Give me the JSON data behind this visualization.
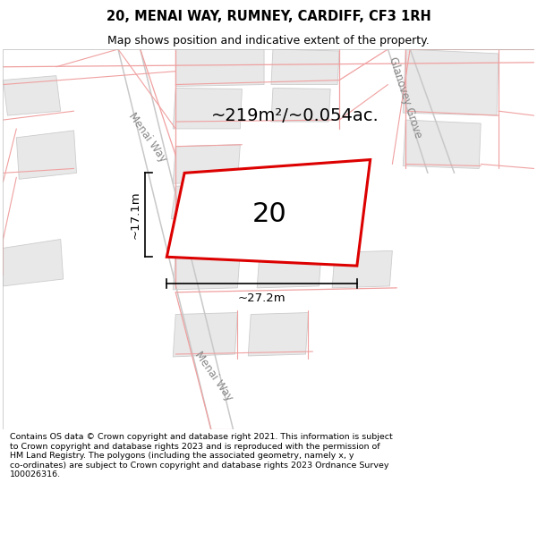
{
  "title_line1": "20, MENAI WAY, RUMNEY, CARDIFF, CF3 1RH",
  "title_line2": "Map shows position and indicative extent of the property.",
  "footer_text": "Contains OS data © Crown copyright and database right 2021. This information is subject\nto Crown copyright and database rights 2023 and is reproduced with the permission of\nHM Land Registry. The polygons (including the associated geometry, namely x, y\nco-ordinates) are subject to Crown copyright and database rights 2023 Ordnance Survey\n100026316.",
  "area_label": "~219m²/~0.054ac.",
  "number_label": "20",
  "dim_width": "~27.2m",
  "dim_height": "~17.1m",
  "road_label_menai_top": "Menai Way",
  "road_label_menai_bot": "Menai Way",
  "road_label_right": "Glanovey Grove",
  "bg_color": "#ffffff",
  "map_bg": "#ffffff",
  "block_fill": "#e8e8e8",
  "block_edge": "#cccccc",
  "road_line_color": "#f0a0a0",
  "road_outline_color": "#c8c8c8",
  "main_plot_stroke": "#dd0000",
  "road_label_color": "#888888",
  "title_fontsize": 10.5,
  "subtitle_fontsize": 9.0,
  "footer_fontsize": 6.8,
  "area_fontsize": 14,
  "number_fontsize": 22,
  "dim_fontsize": 9.5,
  "road_label_fontsize": 8.5
}
